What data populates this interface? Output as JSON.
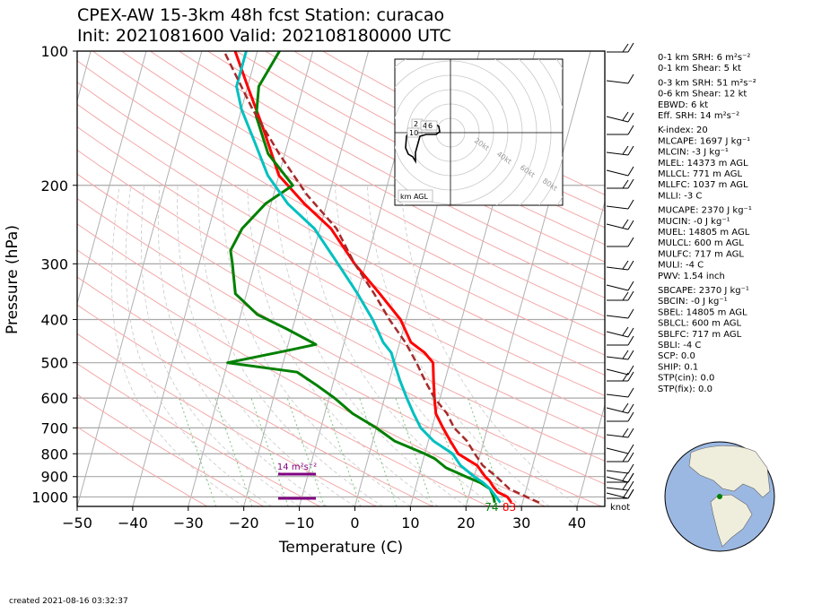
{
  "chart_data": {
    "type": "line",
    "title_line1": "CPEX-AW 15-3km  48h fcst  Station: curacao",
    "title_line2": "Init: 2021081600  Valid: 202108180000 UTC",
    "xlabel": "Temperature (C)",
    "ylabel": "Pressure (hPa)",
    "xlim": [
      -50,
      45
    ],
    "ylim": [
      1050,
      100
    ],
    "y_scale": "log",
    "x_ticks": [
      "−50",
      "−40",
      "−30",
      "−20",
      "−10",
      "0",
      "10",
      "20",
      "30",
      "40"
    ],
    "x_tick_values": [
      -50,
      -40,
      -30,
      -20,
      -10,
      0,
      10,
      20,
      30,
      40
    ],
    "y_ticks": [
      "100",
      "200",
      "300",
      "400",
      "500",
      "600",
      "700",
      "800",
      "900",
      "1000"
    ],
    "y_tick_values": [
      100,
      200,
      300,
      400,
      500,
      600,
      700,
      800,
      900,
      1000
    ],
    "grid": true,
    "series": [
      {
        "role": "temperature",
        "color": "#ff0000",
        "points": [
          [
            28,
            1030
          ],
          [
            27,
            1000
          ],
          [
            25,
            975
          ],
          [
            24,
            950
          ],
          [
            23,
            920
          ],
          [
            22,
            900
          ],
          [
            20,
            850
          ],
          [
            16,
            800
          ],
          [
            14,
            750
          ],
          [
            12,
            700
          ],
          [
            10,
            650
          ],
          [
            9,
            600
          ],
          [
            8,
            550
          ],
          [
            7,
            500
          ],
          [
            5,
            475
          ],
          [
            2,
            450
          ],
          [
            -1,
            400
          ],
          [
            -6,
            350
          ],
          [
            -12,
            300
          ],
          [
            -18,
            250
          ],
          [
            -24,
            220
          ],
          [
            -30,
            190
          ],
          [
            -35,
            150
          ],
          [
            -40,
            120
          ],
          [
            -44,
            100
          ]
        ]
      },
      {
        "role": "dewpoint",
        "color": "#008000",
        "points": [
          [
            25,
            1030
          ],
          [
            24.5,
            1000
          ],
          [
            23.5,
            960
          ],
          [
            21.5,
            930
          ],
          [
            18.5,
            900
          ],
          [
            14.5,
            860
          ],
          [
            12,
            820
          ],
          [
            10,
            800
          ],
          [
            4,
            750
          ],
          [
            0,
            700
          ],
          [
            -5,
            650
          ],
          [
            -9,
            600
          ],
          [
            -13,
            560
          ],
          [
            -17,
            525
          ],
          [
            -30,
            500
          ],
          [
            -20,
            470
          ],
          [
            -15,
            455
          ],
          [
            -21,
            420
          ],
          [
            -27,
            390
          ],
          [
            -32,
            350
          ],
          [
            -34,
            300
          ],
          [
            -35,
            280
          ],
          [
            -34,
            250
          ],
          [
            -31,
            220
          ],
          [
            -27,
            200
          ],
          [
            -33,
            170
          ],
          [
            -37,
            140
          ],
          [
            -38,
            120
          ],
          [
            -36,
            100
          ]
        ]
      },
      {
        "role": "wet-bulb",
        "color": "#00c0c0",
        "points": [
          [
            26,
            1030
          ],
          [
            25,
            1000
          ],
          [
            23.5,
            960
          ],
          [
            22,
            930
          ],
          [
            20,
            900
          ],
          [
            17,
            850
          ],
          [
            15,
            800
          ],
          [
            11,
            750
          ],
          [
            8,
            700
          ],
          [
            6,
            650
          ],
          [
            4,
            600
          ],
          [
            2,
            550
          ],
          [
            0,
            500
          ],
          [
            -1,
            475
          ],
          [
            -3,
            450
          ],
          [
            -6,
            400
          ],
          [
            -10,
            350
          ],
          [
            -15,
            300
          ],
          [
            -21,
            250
          ],
          [
            -27,
            220
          ],
          [
            -32,
            190
          ],
          [
            -36,
            160
          ],
          [
            -40,
            135
          ],
          [
            -42,
            120
          ],
          [
            -42,
            100
          ]
        ]
      },
      {
        "role": "parcel",
        "color": "#a52a2a",
        "points": [
          [
            33,
            1030
          ],
          [
            27,
            960
          ],
          [
            24,
            900
          ],
          [
            21,
            850
          ],
          [
            19,
            800
          ],
          [
            17,
            750
          ],
          [
            14,
            700
          ],
          [
            12,
            650
          ],
          [
            9,
            600
          ],
          [
            6.5,
            550
          ],
          [
            4,
            500
          ],
          [
            1,
            450
          ],
          [
            -3,
            400
          ],
          [
            -7,
            350
          ],
          [
            -12,
            300
          ],
          [
            -17,
            250
          ],
          [
            -24,
            210
          ],
          [
            -31,
            170
          ],
          [
            -38,
            135
          ],
          [
            -46,
            100
          ]
        ]
      }
    ],
    "annotations": {
      "surface_dewpoint": "74",
      "surface_temperature": "83",
      "srh_label": "14 m²s⁻²",
      "knot_label": "knot",
      "hodograph_range_labels": [
        "20kt",
        "40kt",
        "60kt",
        "80kt"
      ],
      "hodograph_height_labels": [
        "2",
        "4",
        "6",
        "10"
      ],
      "hodograph_legend": "km AGL"
    },
    "indices": [
      "0-1 km SRH: 6 m²s⁻²",
      "0-1 km Shear: 5 kt",
      "0-3 km SRH: 51 m²s⁻²",
      "0-6 km Shear: 12 kt",
      "EBWD: 6 kt",
      "Eff. SRH: 14 m²s⁻²",
      "K-index: 20",
      "MLCAPE: 1697 J kg⁻¹",
      "MLCIN: -3 J kg⁻¹",
      "MLEL: 14373 m AGL",
      "MLLCL: 771 m AGL",
      "MLLFC: 1037 m AGL",
      "MLLI: -3 C",
      "MUCAPE: 2370 J kg⁻¹",
      "MUCIN: -0 J kg⁻¹",
      "MUEL: 14805 m AGL",
      "MULCL: 600 m AGL",
      "MULFC: 717 m AGL",
      "MULI: -4 C",
      "PWV: 1.54 inch",
      "SBCAPE: 2370 J kg⁻¹",
      "SBCIN: -0 J kg⁻¹",
      "SBEL: 14805 m AGL",
      "SBLCL: 600 m AGL",
      "SBLFC: 717 m AGL",
      "SBLI: -4 C",
      "SCP: 0.0",
      "SHIP: 0.1",
      "STP(cin): 0.0",
      "STP(fix): 0.0"
    ],
    "footer": "created 2021-08-16 03:32:37"
  }
}
